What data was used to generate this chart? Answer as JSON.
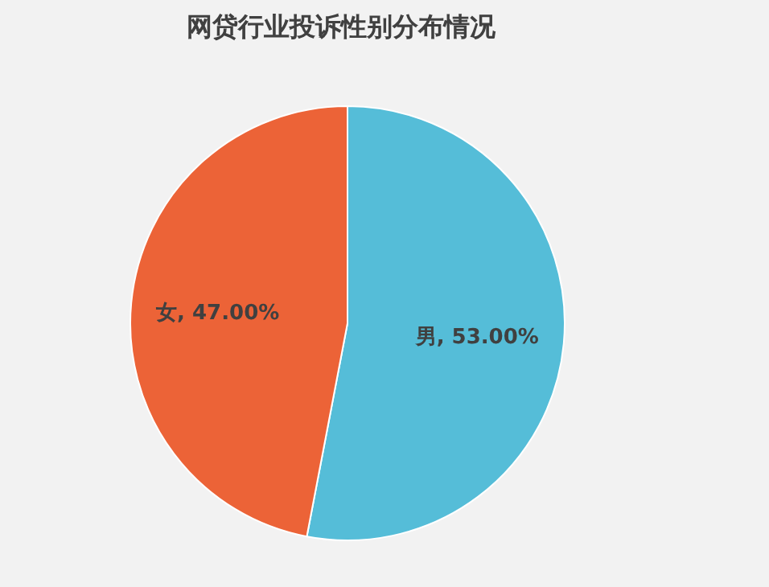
{
  "chart_data": {
    "type": "pie",
    "title": "网贷行业投诉性别分布情况",
    "categories": [
      "男",
      "女"
    ],
    "values": [
      53,
      47
    ],
    "value_labels": [
      "53.00%",
      "47.00%"
    ],
    "colors": [
      "#55bdd8",
      "#ec6337"
    ]
  }
}
